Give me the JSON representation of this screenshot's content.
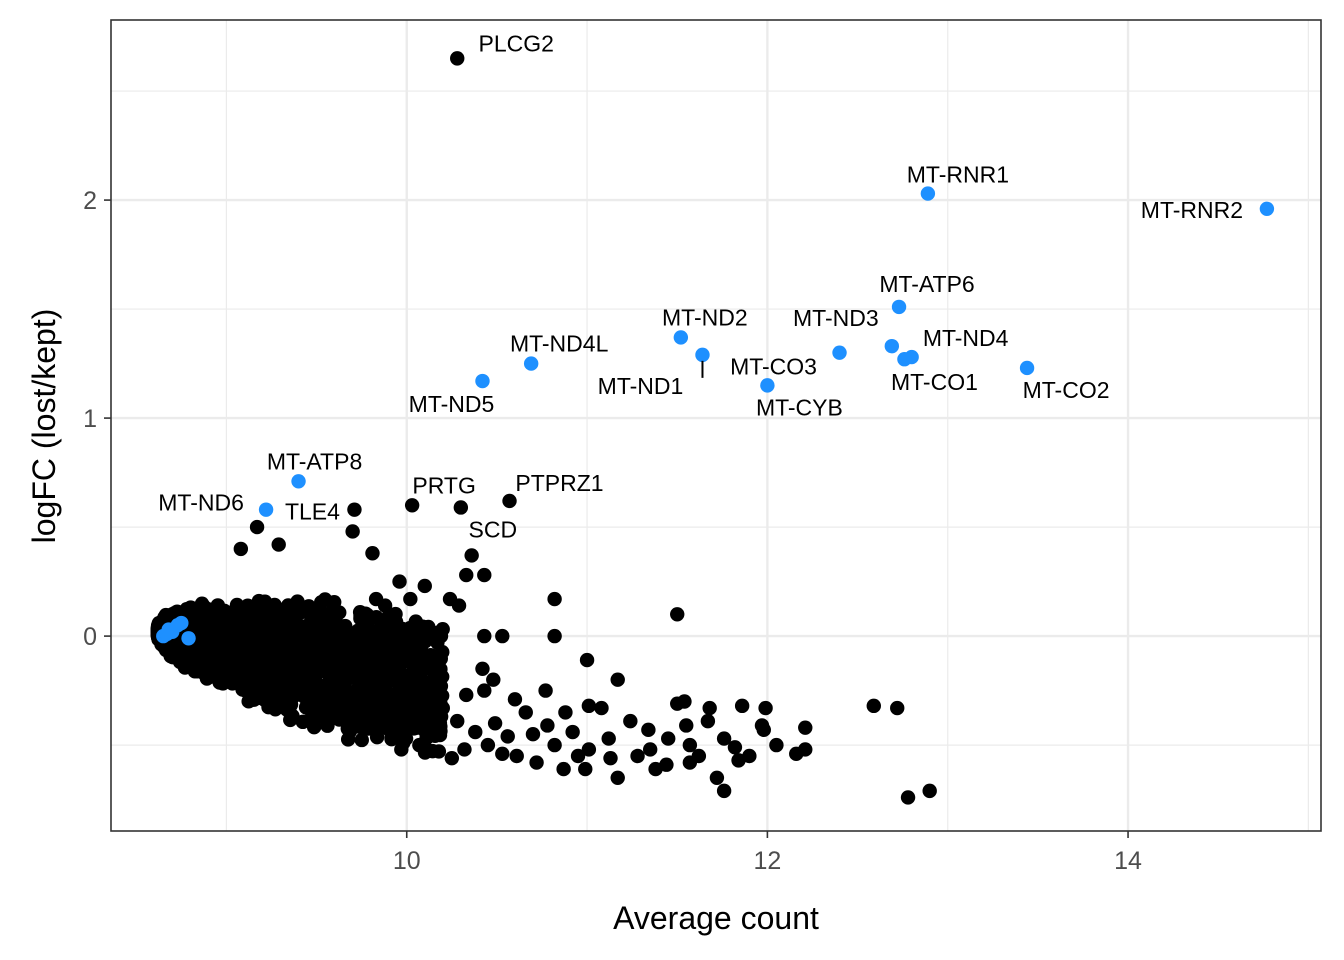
{
  "chart_data": {
    "type": "scatter",
    "title": "",
    "xlabel": "Average count",
    "ylabel": "logFC (lost/kept)",
    "xlim": [
      8.36,
      15.07
    ],
    "ylim": [
      -0.894,
      2.826
    ],
    "x_ticks": [
      10,
      12,
      14
    ],
    "x_tick_labels": [
      "10",
      "12",
      "14"
    ],
    "y_ticks": [
      0,
      1,
      2
    ],
    "y_tick_labels": [
      "0",
      "1",
      "2"
    ],
    "grid": true,
    "legend": "none",
    "colors": {
      "default": "#000000",
      "highlight": "#1E90FF"
    },
    "labeled_points": [
      {
        "label": "PLCG2",
        "x": 10.28,
        "y": 2.65,
        "highlight": false
      },
      {
        "label": "MT-RNR1",
        "x": 12.89,
        "y": 2.03,
        "highlight": true
      },
      {
        "label": "MT-RNR2",
        "x": 14.77,
        "y": 1.96,
        "highlight": true
      },
      {
        "label": "MT-ATP6",
        "x": 12.73,
        "y": 1.51,
        "highlight": true
      },
      {
        "label": "MT-ND2",
        "x": 11.52,
        "y": 1.37,
        "highlight": true
      },
      {
        "label": "MT-ND1",
        "x": 11.64,
        "y": 1.29,
        "highlight": true
      },
      {
        "label": "MT-CO3",
        "x": 12.4,
        "y": 1.3,
        "highlight": true
      },
      {
        "label": "MT-ND3",
        "x": 12.69,
        "y": 1.33,
        "highlight": true
      },
      {
        "label": "MT-ND4",
        "x": 12.8,
        "y": 1.28,
        "highlight": true
      },
      {
        "label": "MT-CO1",
        "x": 12.76,
        "y": 1.27,
        "highlight": true
      },
      {
        "label": "MT-CYB",
        "x": 12.0,
        "y": 1.15,
        "highlight": true
      },
      {
        "label": "MT-CO2",
        "x": 13.44,
        "y": 1.23,
        "highlight": true
      },
      {
        "label": "MT-ND4L",
        "x": 10.69,
        "y": 1.25,
        "highlight": true
      },
      {
        "label": "MT-ND5",
        "x": 10.42,
        "y": 1.17,
        "highlight": true
      },
      {
        "label": "MT-ATP8",
        "x": 9.4,
        "y": 0.71,
        "highlight": true
      },
      {
        "label": "MT-ND6",
        "x": 9.22,
        "y": 0.58,
        "highlight": true
      },
      {
        "label": "TLE4",
        "x": 9.71,
        "y": 0.58,
        "highlight": false
      },
      {
        "label": "PRTG",
        "x": 10.03,
        "y": 0.6,
        "highlight": false
      },
      {
        "label": "PTPRZ1",
        "x": 10.57,
        "y": 0.62,
        "highlight": false
      },
      {
        "label": "SCD",
        "x": 10.3,
        "y": 0.59,
        "highlight": false
      }
    ],
    "highlight_points_unlabeled": [
      [
        8.65,
        0.0
      ],
      [
        8.67,
        0.01
      ],
      [
        8.68,
        0.03
      ],
      [
        8.7,
        0.02
      ],
      [
        8.73,
        0.05
      ],
      [
        8.75,
        0.06
      ],
      [
        8.79,
        -0.01
      ]
    ],
    "points": [
      [
        11.5,
        0.1
      ],
      [
        10.82,
        0.17
      ],
      [
        10.82,
        0.0
      ],
      [
        11.0,
        -0.11
      ],
      [
        12.59,
        -0.32
      ],
      [
        12.72,
        -0.33
      ],
      [
        12.78,
        -0.74
      ],
      [
        12.9,
        -0.71
      ],
      [
        12.21,
        -0.42
      ],
      [
        12.21,
        -0.52
      ],
      [
        12.16,
        -0.54
      ],
      [
        12.05,
        -0.5
      ],
      [
        11.99,
        -0.33
      ],
      [
        11.97,
        -0.41
      ],
      [
        11.98,
        -0.43
      ],
      [
        11.76,
        -0.71
      ],
      [
        11.72,
        -0.65
      ],
      [
        11.86,
        -0.32
      ],
      [
        11.68,
        -0.33
      ],
      [
        11.67,
        -0.39
      ],
      [
        11.54,
        -0.3
      ],
      [
        11.5,
        -0.31
      ],
      [
        11.55,
        -0.41
      ],
      [
        11.57,
        -0.5
      ],
      [
        11.76,
        -0.47
      ],
      [
        11.82,
        -0.51
      ],
      [
        11.84,
        -0.57
      ],
      [
        11.57,
        -0.58
      ],
      [
        11.44,
        -0.59
      ],
      [
        11.38,
        -0.61
      ],
      [
        11.35,
        -0.52
      ],
      [
        11.34,
        -0.43
      ],
      [
        11.24,
        -0.39
      ],
      [
        11.17,
        -0.2
      ],
      [
        11.08,
        -0.33
      ],
      [
        11.01,
        -0.32
      ],
      [
        11.17,
        -0.65
      ],
      [
        11.13,
        -0.56
      ],
      [
        11.01,
        -0.52
      ],
      [
        10.99,
        -0.61
      ],
      [
        10.87,
        -0.61
      ],
      [
        10.82,
        -0.5
      ],
      [
        10.88,
        -0.35
      ],
      [
        10.77,
        -0.25
      ],
      [
        10.78,
        -0.41
      ],
      [
        10.6,
        -0.29
      ],
      [
        10.61,
        -0.55
      ],
      [
        10.53,
        -0.54
      ],
      [
        10.45,
        -0.5
      ],
      [
        10.49,
        -0.4
      ],
      [
        10.48,
        -0.2
      ],
      [
        10.43,
        -0.25
      ],
      [
        10.33,
        -0.27
      ],
      [
        10.28,
        -0.39
      ],
      [
        10.32,
        -0.52
      ],
      [
        10.25,
        -0.56
      ],
      [
        10.13,
        -0.45
      ],
      [
        10.07,
        -0.5
      ],
      [
        9.97,
        -0.52
      ],
      [
        10.43,
        0.0
      ],
      [
        10.53,
        0.0
      ],
      [
        10.42,
        -0.15
      ],
      [
        10.19,
        0.0
      ],
      [
        10.1,
        0.23
      ],
      [
        10.24,
        0.17
      ],
      [
        10.29,
        0.14
      ],
      [
        10.33,
        0.28
      ],
      [
        10.43,
        0.28
      ],
      [
        10.36,
        0.37
      ],
      [
        10.02,
        0.17
      ],
      [
        9.96,
        0.25
      ],
      [
        9.88,
        0.14
      ],
      [
        9.83,
        0.17
      ],
      [
        9.81,
        0.38
      ],
      [
        9.7,
        0.48
      ],
      [
        9.17,
        0.5
      ],
      [
        9.08,
        0.4
      ],
      [
        9.29,
        0.42
      ],
      [
        10.13,
        -0.09
      ],
      [
        10.01,
        -0.06
      ],
      [
        10.16,
        -0.2
      ],
      [
        10.7,
        -0.45
      ],
      [
        10.92,
        -0.44
      ],
      [
        11.12,
        -0.47
      ],
      [
        11.28,
        -0.55
      ],
      [
        11.45,
        -0.47
      ],
      [
        11.62,
        -0.55
      ],
      [
        11.9,
        -0.55
      ],
      [
        10.95,
        -0.55
      ],
      [
        10.66,
        -0.35
      ],
      [
        10.38,
        -0.44
      ],
      [
        10.2,
        -0.33
      ],
      [
        10.05,
        -0.4
      ],
      [
        9.95,
        -0.38
      ],
      [
        10.56,
        -0.46
      ],
      [
        10.72,
        -0.58
      ]
    ],
    "dense_core": {
      "n": 1800,
      "x_range": [
        8.62,
        10.2
      ],
      "seed": 7
    }
  }
}
